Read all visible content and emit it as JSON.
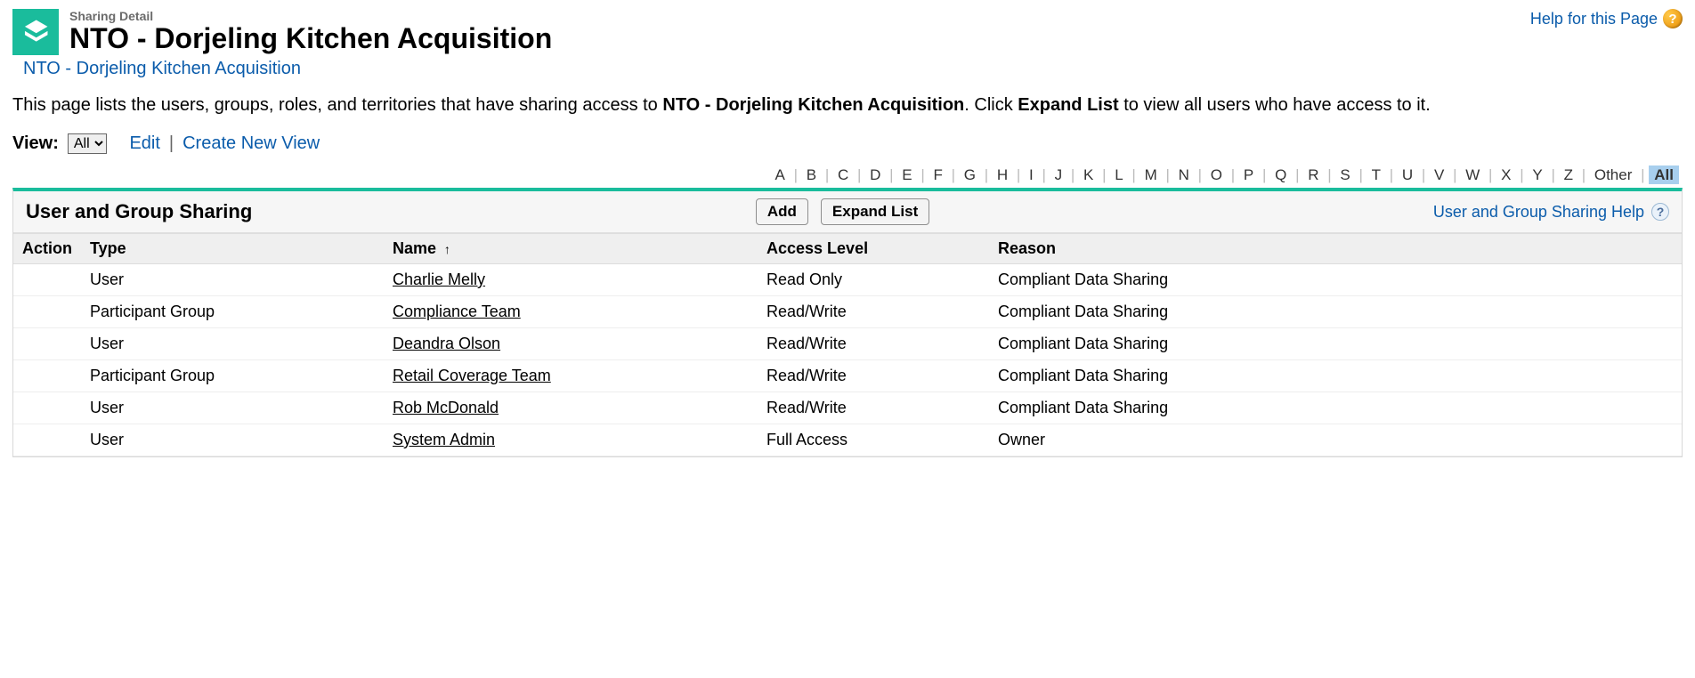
{
  "header": {
    "page_type": "Sharing Detail",
    "title": "NTO - Dorjeling Kitchen Acquisition",
    "help_link": "Help for this Page"
  },
  "breadcrumb": {
    "text": "NTO - Dorjeling Kitchen Acquisition"
  },
  "description": {
    "prefix": "This page lists the users, groups, roles, and territories that have sharing access to ",
    "record_name": "NTO - Dorjeling Kitchen Acquisition",
    "mid": ". Click ",
    "expand": "Expand List",
    "suffix": " to view all users who have access to it."
  },
  "view": {
    "label": "View:",
    "selected": "All",
    "edit": "Edit",
    "create": "Create New View"
  },
  "alpha": {
    "letters": [
      "A",
      "B",
      "C",
      "D",
      "E",
      "F",
      "G",
      "H",
      "I",
      "J",
      "K",
      "L",
      "M",
      "N",
      "O",
      "P",
      "Q",
      "R",
      "S",
      "T",
      "U",
      "V",
      "W",
      "X",
      "Y",
      "Z",
      "Other",
      "All"
    ],
    "selected": "All"
  },
  "panel": {
    "title": "User and Group Sharing",
    "add": "Add",
    "expand": "Expand List",
    "help": "User and Group Sharing Help"
  },
  "columns": {
    "action": "Action",
    "type": "Type",
    "name": "Name",
    "access": "Access Level",
    "reason": "Reason"
  },
  "rows": [
    {
      "type": "User",
      "name": "Charlie Melly",
      "access": "Read Only",
      "reason": "Compliant Data Sharing"
    },
    {
      "type": "Participant Group",
      "name": "Compliance Team",
      "access": "Read/Write",
      "reason": "Compliant Data Sharing"
    },
    {
      "type": "User",
      "name": "Deandra Olson",
      "access": "Read/Write",
      "reason": "Compliant Data Sharing"
    },
    {
      "type": "Participant Group",
      "name": "Retail Coverage Team",
      "access": "Read/Write",
      "reason": "Compliant Data Sharing"
    },
    {
      "type": "User",
      "name": "Rob McDonald",
      "access": "Read/Write",
      "reason": "Compliant Data Sharing"
    },
    {
      "type": "User",
      "name": "System Admin",
      "access": "Full Access",
      "reason": "Owner"
    }
  ]
}
